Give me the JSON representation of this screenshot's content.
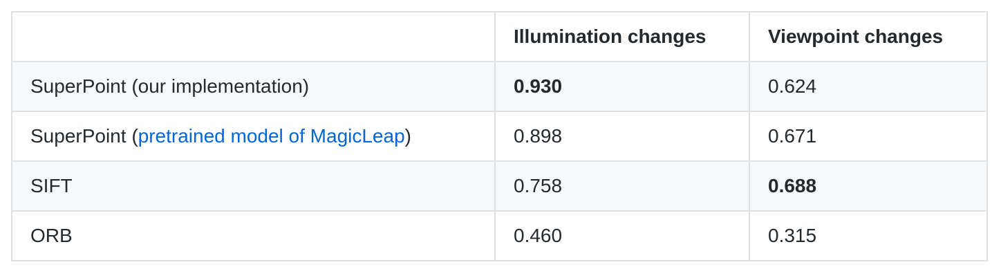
{
  "table": {
    "headers": [
      "",
      "Illumination changes",
      "Viewpoint changes"
    ],
    "rows": [
      {
        "method_prefix": "SuperPoint (our implementation)",
        "link": "",
        "method_suffix": "",
        "illumination": "0.930",
        "viewpoint": "0.624",
        "bold": "illumination"
      },
      {
        "method_prefix": "SuperPoint (",
        "link": "pretrained model of MagicLeap",
        "method_suffix": ")",
        "illumination": "0.898",
        "viewpoint": "0.671",
        "bold": ""
      },
      {
        "method_prefix": "SIFT",
        "link": "",
        "method_suffix": "",
        "illumination": "0.758",
        "viewpoint": "0.688",
        "bold": "viewpoint"
      },
      {
        "method_prefix": "ORB",
        "link": "",
        "method_suffix": "",
        "illumination": "0.460",
        "viewpoint": "0.315",
        "bold": ""
      }
    ]
  },
  "colors": {
    "link": "#0366d6",
    "border": "#dfe2e5",
    "stripe": "#f6f8fa",
    "text": "#24292e"
  }
}
